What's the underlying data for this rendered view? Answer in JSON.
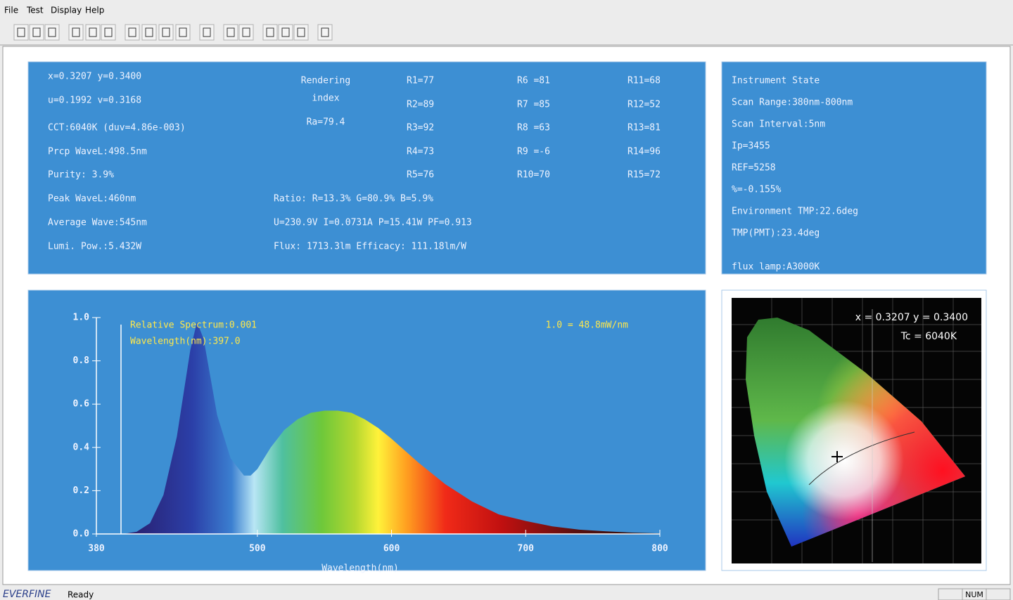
{
  "menu": [
    "File",
    "Test",
    "Display",
    "Help"
  ],
  "info": {
    "left": [
      "x=0.3207 y=0.3400",
      "u=0.1992 v=0.3168",
      "CCT:6040K (duv=4.86e-003)",
      "Prcp WaveL:498.5nm",
      "Purity:  3.9%",
      "Peak WaveL:460nm",
      "Average Wave:545nm",
      "Lumi. Pow.:5.432W"
    ],
    "rendering": [
      "Rendering",
      "index",
      "Ra=79.4"
    ],
    "r_columns": [
      [
        "R1=77",
        "R2=89",
        "R3=92",
        "R4=73",
        "R5=76"
      ],
      [
        "R6 =81",
        "R7 =85",
        "R8 =63",
        "R9 =-6",
        "R10=70"
      ],
      [
        "R11=68",
        "R12=52",
        "R13=81",
        "R14=96",
        "R15=72"
      ]
    ],
    "electrical": [
      "Ratio: R=13.3% G=80.9% B=5.9%",
      "U=230.9V I=0.0731A P=15.41W PF=0.913",
      "Flux: 1713.3lm Efficacy: 111.18lm/W"
    ]
  },
  "instrument": [
    "Instrument State",
    "Scan Range:380nm-800nm",
    "Scan Interval:5nm",
    "Ip=3455",
    "REF=5258",
    "%=-0.155%",
    "Environment TMP:22.6deg",
    "TMP(PMT):23.4deg",
    "flux lamp:A3000K"
  ],
  "spectrum": {
    "type": "line",
    "annotations": [
      "Relative Spectrum:0.001",
      "Wavelength(nm):397.0",
      "1.0 = 48.8mW/nm"
    ],
    "x_label": "Wavelength(nm)",
    "x": [
      380,
      400,
      410,
      420,
      430,
      440,
      450,
      455,
      460,
      470,
      480,
      490,
      495,
      500,
      510,
      520,
      530,
      540,
      550,
      560,
      570,
      580,
      590,
      600,
      620,
      640,
      660,
      680,
      700,
      720,
      740,
      760,
      780,
      800
    ],
    "values": [
      0,
      0,
      0.01,
      0.05,
      0.18,
      0.45,
      0.85,
      0.98,
      0.9,
      0.55,
      0.35,
      0.27,
      0.27,
      0.3,
      0.4,
      0.48,
      0.53,
      0.56,
      0.57,
      0.57,
      0.56,
      0.53,
      0.49,
      0.44,
      0.33,
      0.23,
      0.15,
      0.09,
      0.06,
      0.035,
      0.02,
      0.012,
      0.006,
      0.003
    ],
    "xlim": [
      380,
      800
    ],
    "ylim": [
      0,
      1
    ],
    "xticks": [
      380,
      500,
      600,
      700,
      800
    ],
    "yticks": [
      {
        "value": 0,
        "label": "0.0"
      },
      0.2,
      0.4,
      0.6,
      0.8,
      {
        "value": 1,
        "label": "1.0"
      }
    ]
  },
  "chromaticity": {
    "coords": "x = 0.3207 y = 0.3400",
    "tc": "Tc = 6040K"
  },
  "status": {
    "brand": "EVERFINE",
    "state": "Ready",
    "num": "NUM"
  }
}
